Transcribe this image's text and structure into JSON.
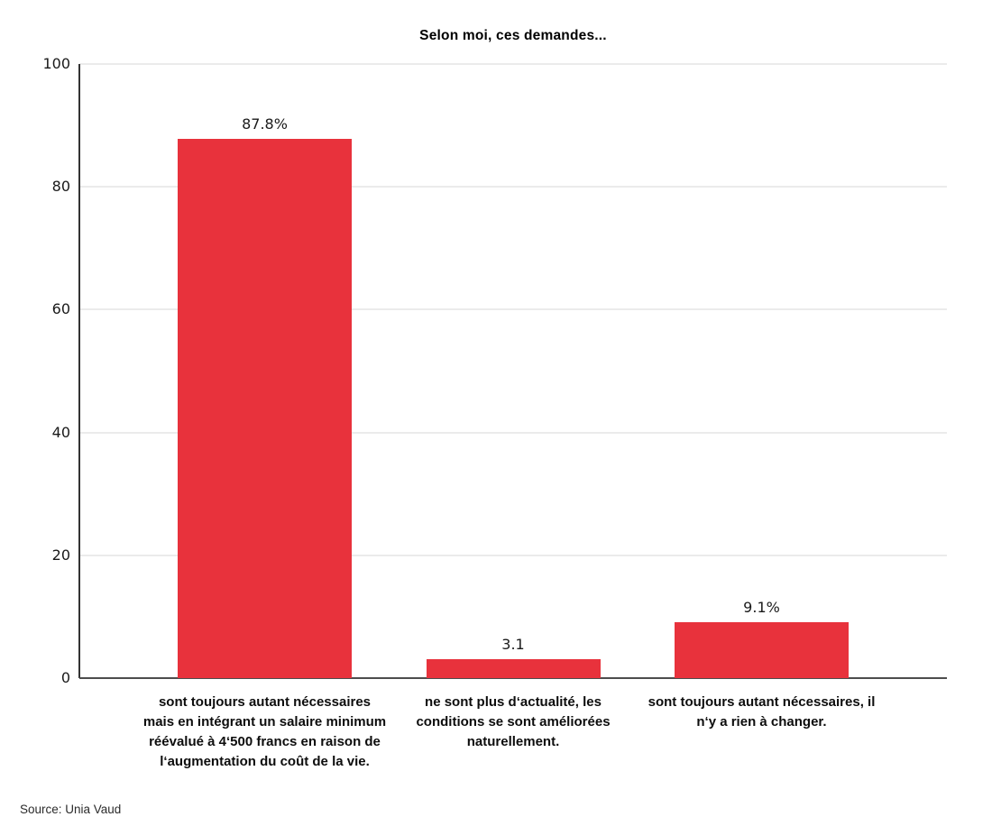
{
  "title": "Selon moi, ces demandes...",
  "source": "Source: Unia Vaud",
  "chart_data": {
    "type": "bar",
    "title": "Selon moi, ces demandes...",
    "categories": [
      "sont toujours autant nécessaires mais en intégrant un salaire minimum réévalué à 4‘500 francs en raison de l‘augmentation du coût de la vie.",
      "ne sont plus d‘actualité, les conditions se sont améliorées naturellement.",
      "sont toujours autant nécessaires, il n‘y a rien à changer."
    ],
    "values": [
      87.8,
      3.1,
      9.1
    ],
    "value_labels": [
      "87.8%",
      "3.1",
      "9.1%"
    ],
    "xlabel": "",
    "ylabel": "",
    "ylim": [
      0,
      100
    ],
    "yticks": [
      0,
      20,
      40,
      60,
      80,
      100
    ],
    "grid": true,
    "legend": false,
    "bar_color": "#e8323c",
    "axis_color": "#4d4d4d",
    "gridline_color": "#ebebeb",
    "source": "Source: Unia Vaud"
  }
}
